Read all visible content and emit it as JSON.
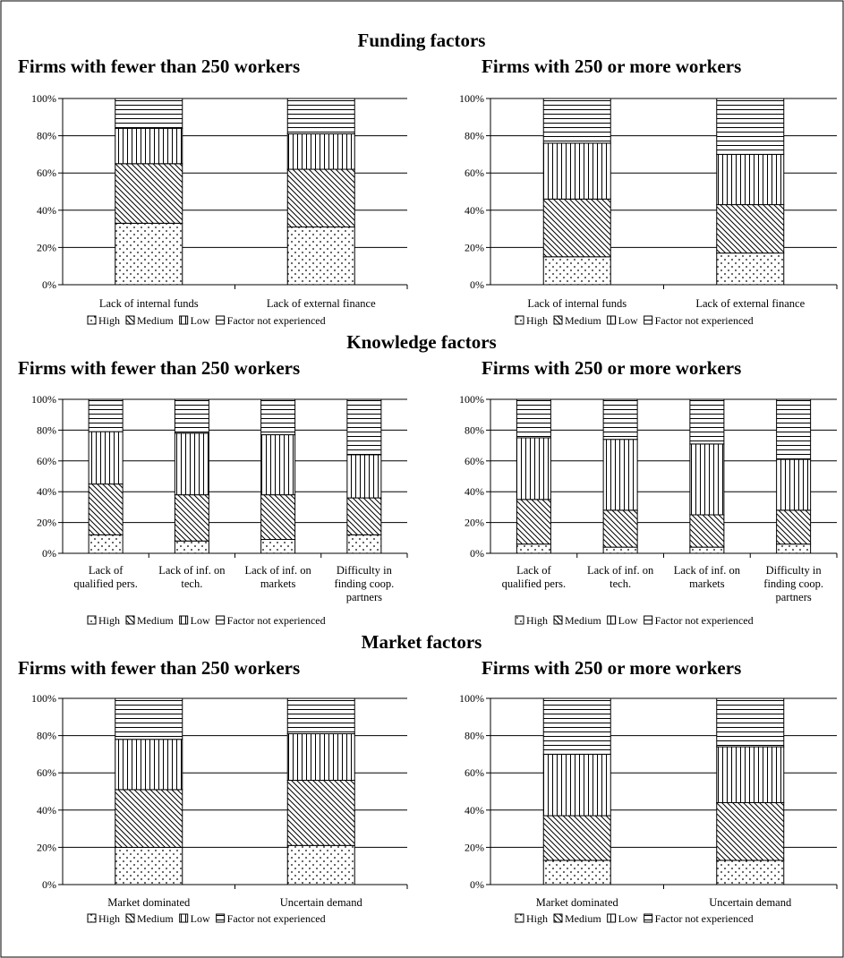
{
  "legend": {
    "high": "High",
    "medium": "Medium",
    "low": "Low",
    "not_experienced": "Factor not experienced"
  },
  "chart_data": [
    {
      "section": "Funding factors",
      "title": "Firms with fewer than 250 workers",
      "type": "bar",
      "stacked": "percent",
      "ylim": [
        0,
        100
      ],
      "yticks": [
        "0%",
        "20%",
        "40%",
        "60%",
        "80%",
        "100%"
      ],
      "grid": true,
      "legend_position": "bottom",
      "categories": [
        [
          "Lack of internal funds"
        ],
        [
          "Lack of external finance"
        ]
      ],
      "series": [
        {
          "name": "High",
          "values": [
            33,
            31
          ]
        },
        {
          "name": "Medium",
          "values": [
            32,
            31
          ]
        },
        {
          "name": "Low",
          "values": [
            19,
            19
          ]
        },
        {
          "name": "Factor not experienced",
          "values": [
            16,
            19
          ]
        }
      ]
    },
    {
      "section": "",
      "title": "Firms with 250 or more workers",
      "type": "bar",
      "stacked": "percent",
      "ylim": [
        0,
        100
      ],
      "yticks": [
        "0%",
        "20%",
        "40%",
        "60%",
        "80%",
        "100%"
      ],
      "grid": true,
      "legend_position": "bottom",
      "categories": [
        [
          "Lack of internal funds"
        ],
        [
          "Lack of external finance"
        ]
      ],
      "series": [
        {
          "name": "High",
          "values": [
            15,
            17
          ]
        },
        {
          "name": "Medium",
          "values": [
            31,
            26
          ]
        },
        {
          "name": "Low",
          "values": [
            30,
            27
          ]
        },
        {
          "name": "Factor not experienced",
          "values": [
            24,
            30
          ]
        }
      ]
    },
    {
      "section": "Knowledge factors",
      "title": "Firms with fewer than 250 workers",
      "type": "bar",
      "stacked": "percent",
      "ylim": [
        0,
        100
      ],
      "yticks": [
        "0%",
        "20%",
        "40%",
        "60%",
        "80%",
        "100%"
      ],
      "grid": true,
      "legend_position": "bottom",
      "categories": [
        [
          "Lack of",
          "qualified pers."
        ],
        [
          "Lack of inf. on",
          "tech."
        ],
        [
          "Lack of inf. on",
          "markets"
        ],
        [
          "Difficulty in",
          "finding coop.",
          "partners"
        ]
      ],
      "series": [
        {
          "name": "High",
          "values": [
            12,
            8,
            9,
            12
          ]
        },
        {
          "name": "Medium",
          "values": [
            33,
            30,
            29,
            24
          ]
        },
        {
          "name": "Low",
          "values": [
            34,
            40,
            39,
            28
          ]
        },
        {
          "name": "Factor not experienced",
          "values": [
            21,
            22,
            23,
            36
          ]
        }
      ]
    },
    {
      "section": "",
      "title": "Firms with 250 or more workers",
      "type": "bar",
      "stacked": "percent",
      "ylim": [
        0,
        100
      ],
      "yticks": [
        "0%",
        "20%",
        "40%",
        "60%",
        "80%",
        "100%"
      ],
      "grid": true,
      "legend_position": "bottom",
      "categories": [
        [
          "Lack of",
          "qualified pers."
        ],
        [
          "Lack of inf. on",
          "tech."
        ],
        [
          "Lack of inf. on",
          "markets"
        ],
        [
          "Difficulty in",
          "finding coop.",
          "partners"
        ]
      ],
      "series": [
        {
          "name": "High",
          "values": [
            6,
            4,
            4,
            6
          ]
        },
        {
          "name": "Medium",
          "values": [
            29,
            24,
            21,
            22
          ]
        },
        {
          "name": "Low",
          "values": [
            40,
            46,
            46,
            33
          ]
        },
        {
          "name": "Factor not experienced",
          "values": [
            25,
            26,
            29,
            39
          ]
        }
      ]
    },
    {
      "section": "Market factors",
      "title": "Firms with fewer than 250 workers",
      "type": "bar",
      "stacked": "percent",
      "ylim": [
        0,
        100
      ],
      "yticks": [
        "0%",
        "20%",
        "40%",
        "60%",
        "80%",
        "100%"
      ],
      "grid": true,
      "legend_position": "bottom",
      "categories": [
        [
          "Market dominated"
        ],
        [
          "Uncertain demand"
        ]
      ],
      "series": [
        {
          "name": "High",
          "values": [
            20,
            21
          ]
        },
        {
          "name": "Medium",
          "values": [
            31,
            35
          ]
        },
        {
          "name": "Low",
          "values": [
            27,
            25
          ]
        },
        {
          "name": "Factor not experienced",
          "values": [
            22,
            19
          ]
        }
      ]
    },
    {
      "section": "",
      "title": "Firms with 250 or more workers",
      "type": "bar",
      "stacked": "percent",
      "ylim": [
        0,
        100
      ],
      "yticks": [
        "0%",
        "20%",
        "40%",
        "60%",
        "80%",
        "100%"
      ],
      "grid": true,
      "legend_position": "bottom",
      "categories": [
        [
          "Market dominated"
        ],
        [
          "Uncertain demand"
        ]
      ],
      "series": [
        {
          "name": "High",
          "values": [
            13,
            13
          ]
        },
        {
          "name": "Medium",
          "values": [
            24,
            31
          ]
        },
        {
          "name": "Low",
          "values": [
            33,
            30
          ]
        },
        {
          "name": "Factor not experienced",
          "values": [
            30,
            26
          ]
        }
      ]
    }
  ]
}
